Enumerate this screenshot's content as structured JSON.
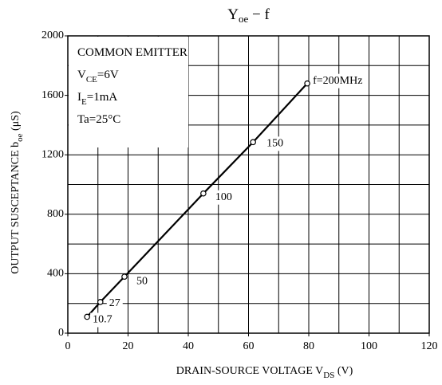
{
  "chart_data": {
    "type": "line",
    "title": {
      "main": "Y",
      "sub": "oe",
      "rest": " − f"
    },
    "x_label": {
      "main": "DRAIN-SOURCE VOLTAGE  V",
      "sub": "DS",
      "rest": "  (V)"
    },
    "y_label": {
      "main": "OUTPUT SUSCEPTANCE  b",
      "sub": "oe",
      "rest": "  (μS)"
    },
    "conditions": [
      {
        "main": "COMMON EMITTER",
        "sub": "",
        "rest": ""
      },
      {
        "main": "V",
        "sub": "CE",
        "rest": "=6V"
      },
      {
        "main": "I",
        "sub": "E",
        "rest": "=1mA"
      },
      {
        "main": "Ta=25°C",
        "sub": "",
        "rest": ""
      }
    ],
    "series": [
      {
        "color": "#000000",
        "x": [
          6.4,
          10.8,
          18.8,
          45,
          61.5,
          79.5
        ],
        "values": [
          110,
          210,
          380,
          940,
          1285,
          1680
        ],
        "point_labels": [
          "10.7",
          "27",
          "50",
          "100",
          "150",
          "f=200MHz"
        ]
      }
    ],
    "xlim": [
      0,
      120
    ],
    "ylim": [
      0,
      2000
    ],
    "xticks": [
      0,
      20,
      40,
      60,
      80,
      100,
      120
    ],
    "yticks": [
      0,
      400,
      800,
      1200,
      1600,
      2000
    ],
    "xgrid": [
      10,
      20,
      30,
      40,
      50,
      60,
      70,
      80,
      90,
      100,
      110
    ],
    "ygrid": [
      200,
      400,
      600,
      800,
      1000,
      1200,
      1400,
      1600,
      1800
    ],
    "grid": true
  }
}
